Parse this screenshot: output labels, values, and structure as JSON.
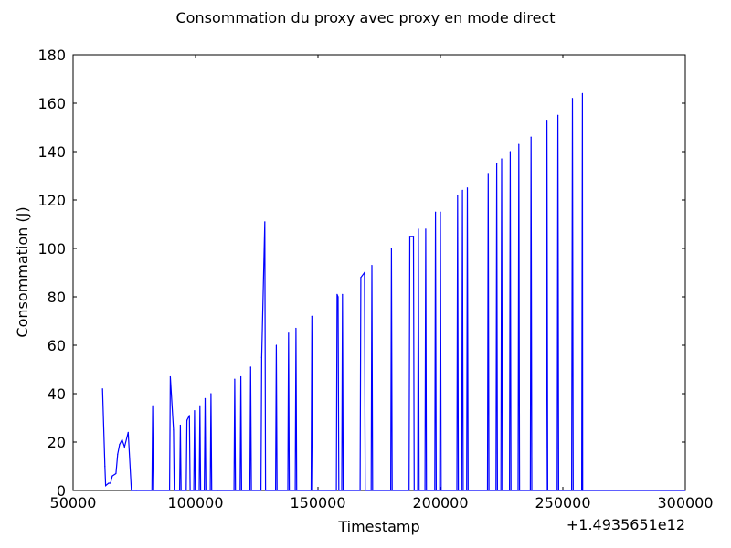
{
  "chart_data": {
    "type": "line",
    "title": "Consommation du proxy avec proxy en mode direct",
    "xlabel": "Timestamp",
    "ylabel": "Consommation (J)",
    "x_offset_label": "+1.4935651e12",
    "xlim": [
      50000,
      300000
    ],
    "ylim": [
      0,
      180
    ],
    "x_ticks": [
      50000,
      100000,
      150000,
      200000,
      250000,
      300000
    ],
    "y_ticks": [
      0,
      20,
      40,
      60,
      80,
      100,
      120,
      140,
      160,
      180
    ],
    "grid": false,
    "line_color": "#0000ff",
    "series": [
      {
        "x": [
          62000,
          63000,
          63300,
          64500,
          65300,
          66000,
          67500,
          68200,
          69000,
          70000,
          71000,
          72500,
          73800,
          75800,
          82500,
          89700,
          91000,
          93800,
          96500,
          97500,
          99600,
          101800,
          103900,
          106300,
          109000,
          116000,
          118500,
          122500,
          127000,
          128300,
          133000,
          138000,
          141000,
          147500,
          157800,
          158200,
          160000,
          167500,
          169000,
          172000,
          180000,
          187500,
          189000,
          191000,
          194000,
          198000,
          200000,
          207000,
          209000,
          211000,
          219500,
          223000,
          225000,
          228500,
          232000,
          237000,
          243500,
          248000,
          253900,
          258000,
          258100
        ],
        "y": [
          42,
          10,
          2,
          3,
          3,
          6,
          7,
          15,
          19,
          21,
          18,
          24,
          0,
          0,
          35,
          47,
          25,
          27,
          29,
          31,
          33,
          35,
          38,
          40,
          0,
          46,
          47,
          51,
          55,
          111,
          60,
          65,
          67,
          72,
          81,
          80,
          81,
          88,
          90,
          93,
          100,
          105,
          105,
          108,
          108,
          115,
          115,
          122,
          124,
          125,
          131,
          135,
          137,
          140,
          143,
          146,
          153,
          155,
          162,
          164,
          0
        ]
      }
    ]
  }
}
